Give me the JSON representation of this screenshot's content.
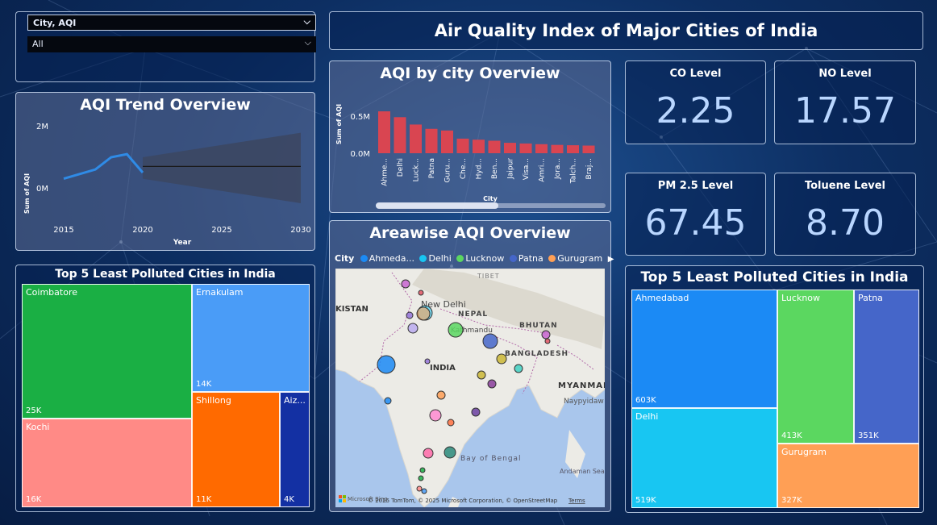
{
  "colors": {
    "bar": "#d94551",
    "trend_line": "#2f8be6",
    "forecast_band": "#3c4660",
    "coimbatore": "#1aaf44",
    "ernakulam": "#4a9cf7",
    "kochi": "#ff8a86",
    "shillong": "#ff6a00",
    "aizawl": "#1330a3",
    "ahmedabad": "#1b8af5",
    "delhi": "#18c6f2",
    "lucknow": "#5bd760",
    "patna": "#4566c9",
    "gurugram": "#ff9f55"
  },
  "slicer": {
    "selected_label": "City, AQI",
    "value": "All"
  },
  "header": {
    "title": "Air Quality Index of Major Cities of India"
  },
  "trend": {
    "title": "AQI Trend Overview",
    "ylabel": "Sum of AQI",
    "xlabel": "Year",
    "yticks": [
      "2M",
      "0M"
    ],
    "xticks": [
      "2015",
      "2020",
      "2025",
      "2030"
    ]
  },
  "bar_chart": {
    "title": "AQI by city Overview",
    "ylabel": "Sum of AQI",
    "xlabel": "City",
    "yticks": [
      "0.5M",
      "0.0M"
    ],
    "categories": [
      "Ahme...",
      "Delhi",
      "Luck...",
      "Patna",
      "Guru...",
      "Che...",
      "Hyd...",
      "Ben...",
      "Jaipur",
      "Visa...",
      "Amri...",
      "Jora...",
      "Talch...",
      "Braj..."
    ]
  },
  "kpis": [
    {
      "label": "CO Level",
      "value": "2.25"
    },
    {
      "label": "NO Level",
      "value": "17.57"
    },
    {
      "label": "PM 2.5 Level",
      "value": "67.45"
    },
    {
      "label": "Toluene Level",
      "value": "8.70"
    }
  ],
  "map": {
    "title": "Areawise AQI Overview",
    "legend_key": "City",
    "legend_items": [
      "Ahmeda...",
      "Delhi",
      "Lucknow",
      "Patna",
      "Gurugram"
    ],
    "legend_colors": [
      "#1b8af5",
      "#18c6f2",
      "#5bd760",
      "#4566c9",
      "#ff9f55"
    ],
    "labels": [
      "TIBET",
      "KISTAN",
      "New Delhi",
      "NEPAL",
      "Kathmandu",
      "BHUTAN",
      "BANGLADESH",
      "INDIA",
      "MYANMAR",
      "Naypyidaw",
      "Bay of Bengal",
      "Andaman Sea"
    ],
    "attribution": "© 2025 TomTom, © 2025 Microsoft Corporation, © OpenStreetMap",
    "terms": "Terms",
    "brand": "Microsoft Bing"
  },
  "treemap_left": {
    "title": "Top 5 Least Polluted Cities in India",
    "tiles": [
      {
        "name": "Coimbatore",
        "value": "25K"
      },
      {
        "name": "Ernakulam",
        "value": "14K"
      },
      {
        "name": "Kochi",
        "value": "16K"
      },
      {
        "name": "Shillong",
        "value": "11K"
      },
      {
        "name": "Aiz...",
        "value": "4K"
      }
    ]
  },
  "treemap_right": {
    "title": "Top 5 Least Polluted Cities in India",
    "tiles": [
      {
        "name": "Ahmedabad",
        "value": "603K"
      },
      {
        "name": "Lucknow",
        "value": "413K"
      },
      {
        "name": "Patna",
        "value": "351K"
      },
      {
        "name": "Delhi",
        "value": "519K"
      },
      {
        "name": "Gurugram",
        "value": "327K"
      }
    ]
  },
  "chart_data": [
    {
      "type": "bar",
      "title": "AQI by city Overview",
      "xlabel": "City",
      "ylabel": "Sum of AQI",
      "categories": [
        "Ahme...",
        "Delhi",
        "Luck...",
        "Patna",
        "Guru...",
        "Che...",
        "Hyd...",
        "Ben...",
        "Jaipur",
        "Visa...",
        "Amri...",
        "Jora...",
        "Talch...",
        "Braj..."
      ],
      "values": [
        603000,
        519000,
        413000,
        351000,
        327000,
        210000,
        195000,
        180000,
        150000,
        140000,
        130000,
        120000,
        115000,
        110000
      ],
      "ylim": [
        0,
        650000
      ]
    },
    {
      "type": "line",
      "title": "AQI Trend Overview",
      "xlabel": "Year",
      "ylabel": "Sum of AQI",
      "series": [
        {
          "name": "",
          "x": [
            2015,
            2017,
            2018,
            2019,
            2020
          ],
          "values": [
            300000,
            600000,
            1000000,
            1100000,
            500000
          ]
        }
      ],
      "forecast": {
        "x": [
          2020,
          2030
        ],
        "values": [
          700000,
          700000
        ],
        "lower": [
          300000,
          -500000
        ],
        "upper": [
          1000000,
          1800000
        ]
      },
      "ylim": [
        -500000,
        2000000
      ],
      "xlim": [
        2014,
        2030
      ]
    }
  ]
}
